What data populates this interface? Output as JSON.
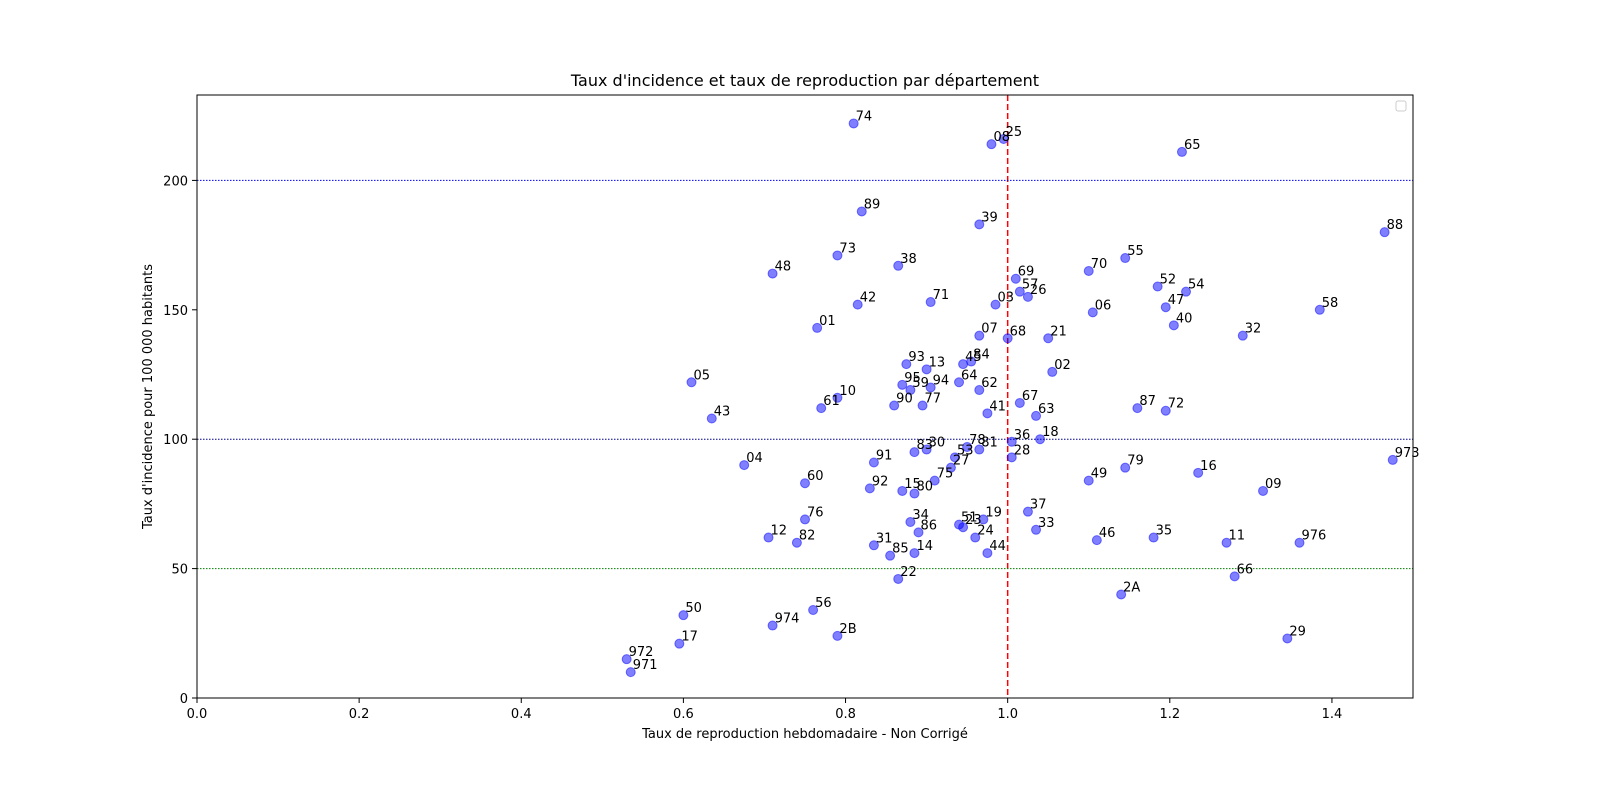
{
  "chart_data": {
    "type": "scatter",
    "title": "Taux d'incidence et taux de reproduction par département",
    "xlabel": "Taux de reproduction hebdomadaire - Non Corrigé",
    "ylabel": "Taux d'incidence pour 100 000 habitants",
    "xlim": [
      0.0,
      1.5
    ],
    "ylim": [
      0,
      233
    ],
    "x_ticks": [
      0.0,
      0.2,
      0.4,
      0.6,
      0.8,
      1.0,
      1.2,
      1.4
    ],
    "x_tick_labels": [
      "0.0",
      "0.2",
      "0.4",
      "0.6",
      "0.8",
      "1.0",
      "1.2",
      "1.4"
    ],
    "y_ticks": [
      0,
      50,
      100,
      150,
      200
    ],
    "y_tick_labels": [
      "0",
      "50",
      "100",
      "150",
      "200"
    ],
    "point_color": "#0000ff",
    "point_alpha": 0.5,
    "grid": false,
    "legend": "top-right, empty",
    "reference_lines": [
      {
        "axis": "x",
        "value": 1.0,
        "color": "#ff0000",
        "style": "dashed"
      },
      {
        "axis": "y",
        "value": 200,
        "color": "#0000ff",
        "style": "dotted"
      },
      {
        "axis": "y",
        "value": 100,
        "color": "#00008b",
        "style": "dotted"
      },
      {
        "axis": "y",
        "value": 50,
        "color": "#008000",
        "style": "dotted"
      }
    ],
    "points": [
      {
        "label": "74",
        "x": 0.81,
        "y": 222
      },
      {
        "label": "08",
        "x": 0.98,
        "y": 214
      },
      {
        "label": "25",
        "x": 0.995,
        "y": 216
      },
      {
        "label": "65",
        "x": 1.215,
        "y": 211
      },
      {
        "label": "89",
        "x": 0.82,
        "y": 188
      },
      {
        "label": "39",
        "x": 0.965,
        "y": 183
      },
      {
        "label": "88",
        "x": 1.465,
        "y": 180
      },
      {
        "label": "73",
        "x": 0.79,
        "y": 171
      },
      {
        "label": "55",
        "x": 1.145,
        "y": 170
      },
      {
        "label": "38",
        "x": 0.865,
        "y": 167
      },
      {
        "label": "70",
        "x": 1.1,
        "y": 165
      },
      {
        "label": "48",
        "x": 0.71,
        "y": 164
      },
      {
        "label": "69",
        "x": 1.01,
        "y": 162
      },
      {
        "label": "52",
        "x": 1.185,
        "y": 159
      },
      {
        "label": "57",
        "x": 1.015,
        "y": 157
      },
      {
        "label": "54",
        "x": 1.22,
        "y": 157
      },
      {
        "label": "26",
        "x": 1.025,
        "y": 155
      },
      {
        "label": "71",
        "x": 0.905,
        "y": 153
      },
      {
        "label": "42",
        "x": 0.815,
        "y": 152
      },
      {
        "label": "03",
        "x": 0.985,
        "y": 152
      },
      {
        "label": "47",
        "x": 1.195,
        "y": 151
      },
      {
        "label": "58",
        "x": 1.385,
        "y": 150
      },
      {
        "label": "06",
        "x": 1.105,
        "y": 149
      },
      {
        "label": "40",
        "x": 1.205,
        "y": 144
      },
      {
        "label": "01",
        "x": 0.765,
        "y": 143
      },
      {
        "label": "07",
        "x": 0.965,
        "y": 140
      },
      {
        "label": "32",
        "x": 1.29,
        "y": 140
      },
      {
        "label": "68",
        "x": 1.0,
        "y": 139
      },
      {
        "label": "21",
        "x": 1.05,
        "y": 139
      },
      {
        "label": "45",
        "x": 0.945,
        "y": 129
      },
      {
        "label": "84",
        "x": 0.955,
        "y": 130
      },
      {
        "label": "93",
        "x": 0.875,
        "y": 129
      },
      {
        "label": "13",
        "x": 0.9,
        "y": 127
      },
      {
        "label": "02",
        "x": 1.055,
        "y": 126
      },
      {
        "label": "05",
        "x": 0.61,
        "y": 122
      },
      {
        "label": "64",
        "x": 0.94,
        "y": 122
      },
      {
        "label": "95",
        "x": 0.87,
        "y": 121
      },
      {
        "label": "94",
        "x": 0.905,
        "y": 120
      },
      {
        "label": "59",
        "x": 0.88,
        "y": 119
      },
      {
        "label": "62",
        "x": 0.965,
        "y": 119
      },
      {
        "label": "10",
        "x": 0.79,
        "y": 116
      },
      {
        "label": "67",
        "x": 1.015,
        "y": 114
      },
      {
        "label": "90",
        "x": 0.86,
        "y": 113
      },
      {
        "label": "77",
        "x": 0.895,
        "y": 113
      },
      {
        "label": "61",
        "x": 0.77,
        "y": 112
      },
      {
        "label": "87",
        "x": 1.16,
        "y": 112
      },
      {
        "label": "72",
        "x": 1.195,
        "y": 111
      },
      {
        "label": "41",
        "x": 0.975,
        "y": 110
      },
      {
        "label": "63",
        "x": 1.035,
        "y": 109
      },
      {
        "label": "43",
        "x": 0.635,
        "y": 108
      },
      {
        "label": "18",
        "x": 1.04,
        "y": 100
      },
      {
        "label": "36",
        "x": 1.005,
        "y": 99
      },
      {
        "label": "78",
        "x": 0.95,
        "y": 97
      },
      {
        "label": "81",
        "x": 0.965,
        "y": 96
      },
      {
        "label": "83",
        "x": 0.885,
        "y": 95
      },
      {
        "label": "30",
        "x": 0.9,
        "y": 96
      },
      {
        "label": "53",
        "x": 0.935,
        "y": 93
      },
      {
        "label": "28",
        "x": 1.005,
        "y": 93
      },
      {
        "label": "973",
        "x": 1.475,
        "y": 92
      },
      {
        "label": "91",
        "x": 0.835,
        "y": 91
      },
      {
        "label": "04",
        "x": 0.675,
        "y": 90
      },
      {
        "label": "27",
        "x": 0.93,
        "y": 89
      },
      {
        "label": "79",
        "x": 1.145,
        "y": 89
      },
      {
        "label": "16",
        "x": 1.235,
        "y": 87
      },
      {
        "label": "49",
        "x": 1.1,
        "y": 84
      },
      {
        "label": "75",
        "x": 0.91,
        "y": 84
      },
      {
        "label": "60",
        "x": 0.75,
        "y": 83
      },
      {
        "label": "92",
        "x": 0.83,
        "y": 81
      },
      {
        "label": "15",
        "x": 0.87,
        "y": 80
      },
      {
        "label": "09",
        "x": 1.315,
        "y": 80
      },
      {
        "label": "80",
        "x": 0.885,
        "y": 79
      },
      {
        "label": "37",
        "x": 1.025,
        "y": 72
      },
      {
        "label": "19",
        "x": 0.97,
        "y": 69
      },
      {
        "label": "76",
        "x": 0.75,
        "y": 69
      },
      {
        "label": "34",
        "x": 0.88,
        "y": 68
      },
      {
        "label": "51",
        "x": 0.94,
        "y": 67
      },
      {
        "label": "23",
        "x": 0.945,
        "y": 66
      },
      {
        "label": "33",
        "x": 1.035,
        "y": 65
      },
      {
        "label": "86",
        "x": 0.89,
        "y": 64
      },
      {
        "label": "12",
        "x": 0.705,
        "y": 62
      },
      {
        "label": "24",
        "x": 0.96,
        "y": 62
      },
      {
        "label": "35",
        "x": 1.18,
        "y": 62
      },
      {
        "label": "46",
        "x": 1.11,
        "y": 61
      },
      {
        "label": "82",
        "x": 0.74,
        "y": 60
      },
      {
        "label": "11",
        "x": 1.27,
        "y": 60
      },
      {
        "label": "976",
        "x": 1.36,
        "y": 60
      },
      {
        "label": "31",
        "x": 0.835,
        "y": 59
      },
      {
        "label": "14",
        "x": 0.885,
        "y": 56
      },
      {
        "label": "44",
        "x": 0.975,
        "y": 56
      },
      {
        "label": "85",
        "x": 0.855,
        "y": 55
      },
      {
        "label": "66",
        "x": 1.28,
        "y": 47
      },
      {
        "label": "22",
        "x": 0.865,
        "y": 46
      },
      {
        "label": "2A",
        "x": 1.14,
        "y": 40
      },
      {
        "label": "56",
        "x": 0.76,
        "y": 34
      },
      {
        "label": "50",
        "x": 0.6,
        "y": 32
      },
      {
        "label": "974",
        "x": 0.71,
        "y": 28
      },
      {
        "label": "2B",
        "x": 0.79,
        "y": 24
      },
      {
        "label": "29",
        "x": 1.345,
        "y": 23
      },
      {
        "label": "17",
        "x": 0.595,
        "y": 21
      },
      {
        "label": "972",
        "x": 0.53,
        "y": 15
      },
      {
        "label": "971",
        "x": 0.535,
        "y": 10
      }
    ]
  }
}
